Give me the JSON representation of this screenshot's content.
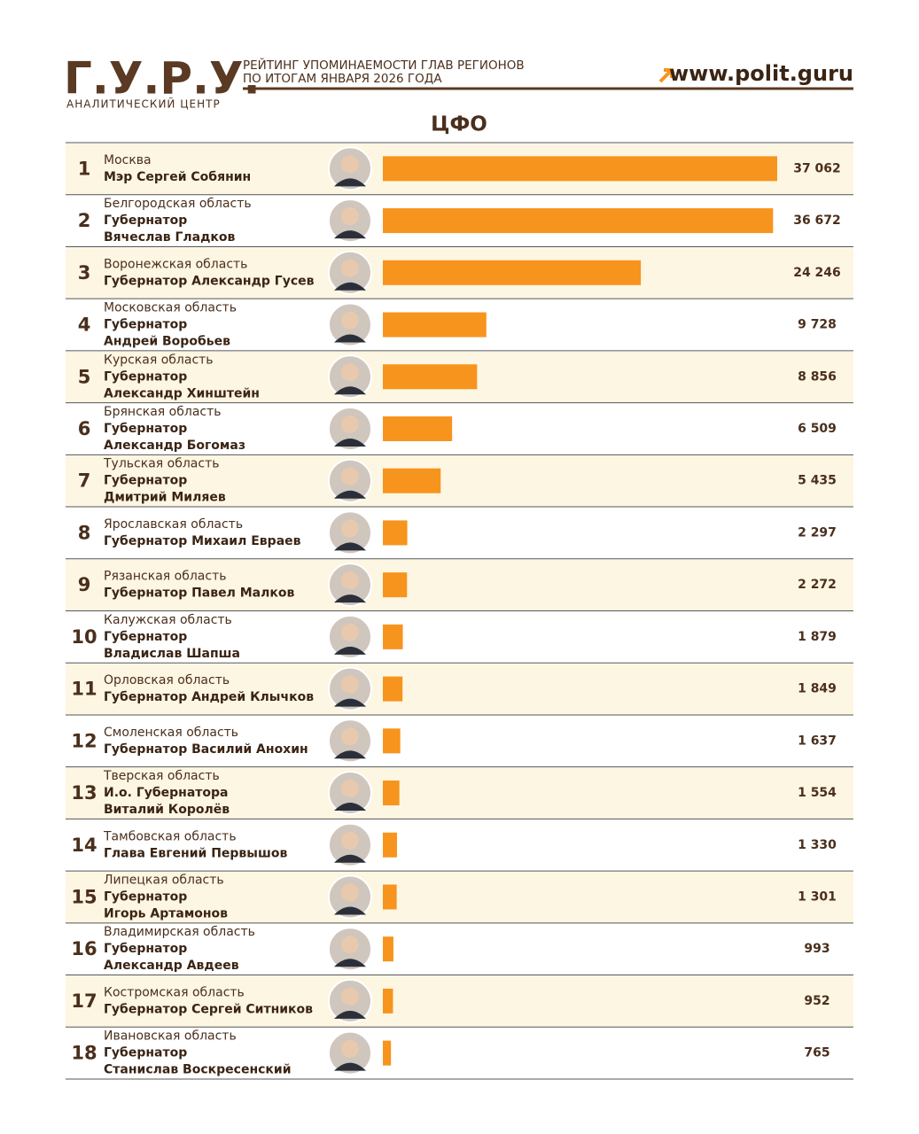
{
  "header": {
    "logo": "Г.У.Р.У.",
    "logo_subtitle": "АНАЛИТИЧЕСКИЙ ЦЕНТР",
    "heading": [
      "РЕЙТИНГ УПОМИНАЕМОСТИ ГЛАВ РЕГИОНОВ",
      "ПО ИТОГАМ ЯНВАРЯ 2026 ГОДА"
    ],
    "url": "www.polit.guru"
  },
  "chart_data": {
    "type": "bar",
    "orientation": "horizontal",
    "title": "ЦФО",
    "color": "#f7941d",
    "ranks": [
      "1",
      "2",
      "3",
      "4",
      "5",
      "6",
      "7",
      "8",
      "9",
      "10",
      "11",
      "12",
      "13",
      "14",
      "15",
      "16",
      "17",
      "18"
    ],
    "categories": [
      "Москва",
      "Белгородская область",
      "Воронежская область",
      "Московская область",
      "Курская область",
      "Брянская область",
      "Тульская область",
      "Ярославская область",
      "Рязанская область",
      "Калужская область",
      "Орловская область",
      "Смоленская область",
      "Тверская область",
      "Тамбовская область",
      "Липецкая область",
      "Владимирская область",
      "Костромская область",
      "Ивановская область"
    ],
    "officials": [
      [
        "Мэр Сергей Собянин"
      ],
      [
        "Губернатор",
        "Вячеслав Гладков"
      ],
      [
        "Губернатор Александр Гусев"
      ],
      [
        "Губернатор",
        "Андрей Воробьев"
      ],
      [
        "Губернатор",
        "Александр Хинштейн"
      ],
      [
        "Губернатор",
        "Александр Богомаз"
      ],
      [
        "Губернатор",
        "Дмитрий Миляев"
      ],
      [
        "Губернатор Михаил Евраев"
      ],
      [
        "Губернатор Павел Малков"
      ],
      [
        "Губернатор",
        "Владислав Шапша"
      ],
      [
        "Губернатор Андрей Клычков"
      ],
      [
        "Губернатор Василий Анохин"
      ],
      [
        "И.о. Губернатора",
        "Виталий Королёв"
      ],
      [
        "Глава Евгений Первышов"
      ],
      [
        "Губернатор",
        "Игорь Артамонов"
      ],
      [
        "Губернатор",
        "Александр Авдеев"
      ],
      [
        "Губернатор Сергей Ситников"
      ],
      [
        "Губернатор",
        "Станислав Воскресенский"
      ]
    ],
    "values": [
      37062,
      36672,
      24246,
      9728,
      8856,
      6509,
      5435,
      2297,
      2272,
      1879,
      1849,
      1637,
      1554,
      1330,
      1301,
      993,
      952,
      765
    ],
    "value_labels": [
      "37 062",
      "36 672",
      "24 246",
      "9 728",
      "8 856",
      "6 509",
      "5 435",
      "2 297",
      "2 272",
      "1 879",
      "1 849",
      "1 637",
      "1 554",
      "1 330",
      "1 301",
      "993",
      "952",
      "765"
    ]
  }
}
